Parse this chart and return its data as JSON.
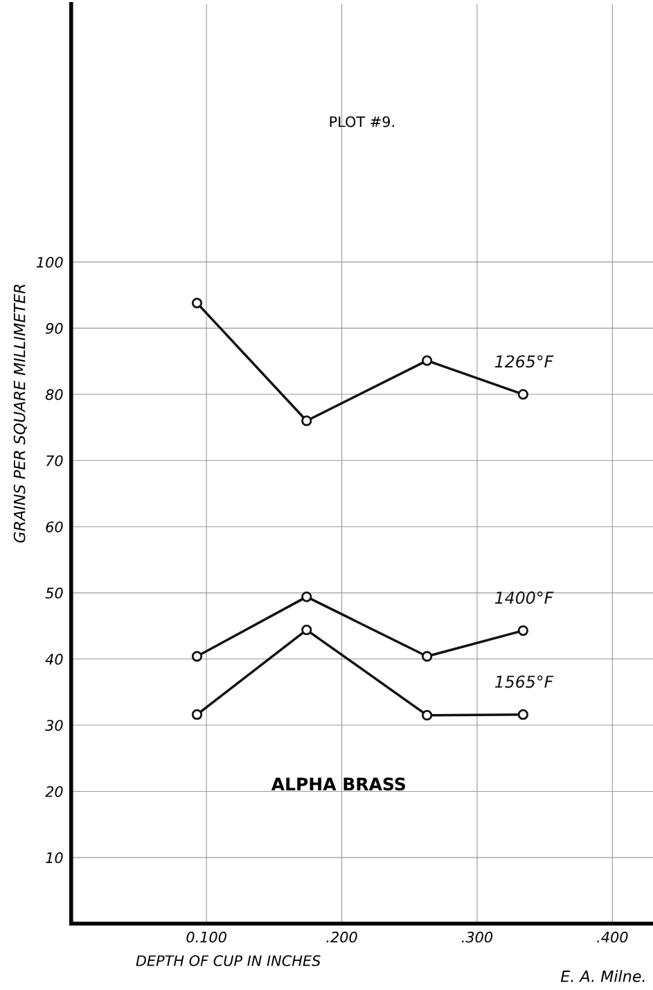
{
  "chart_data": {
    "type": "line",
    "title": "PLOT #9.",
    "subtitle": "ALPHA BRASS",
    "xlabel": "DEPTH OF CUP IN INCHES",
    "ylabel": "GRAINS PER SQUARE MILLIMETER",
    "x": [
      0.093,
      0.174,
      0.263,
      0.334
    ],
    "series": [
      {
        "name": "1265°F",
        "color": "#111111",
        "values": [
          93.8,
          76.0,
          85.1,
          80.0
        ]
      },
      {
        "name": "1400°F",
        "color": "#111111",
        "values": [
          40.4,
          49.4,
          40.4,
          44.3
        ]
      },
      {
        "name": "1565°F",
        "color": "#111111",
        "values": [
          31.6,
          44.4,
          31.5,
          31.6
        ]
      }
    ],
    "xlim": [
      0,
      0.43
    ],
    "ylim": [
      0,
      139
    ],
    "xticks": [
      {
        "value": 0.1,
        "label": "0.100"
      },
      {
        "value": 0.2,
        "label": ".200"
      },
      {
        "value": 0.3,
        "label": ".300"
      },
      {
        "value": 0.4,
        "label": ".400"
      }
    ],
    "yticks": [
      10,
      20,
      30,
      40,
      50,
      60,
      70,
      80,
      90,
      100
    ],
    "grid": true,
    "marker": "circle",
    "line_style": "solid",
    "legend": false,
    "annotations": [
      "E. A. Milne."
    ]
  }
}
